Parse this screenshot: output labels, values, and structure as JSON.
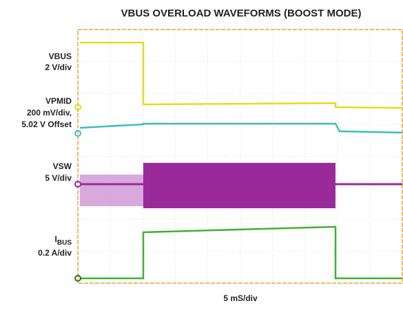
{
  "chart_data": {
    "type": "waveform",
    "title": "VBUS OVERLOAD WAVEFORMS (BOOST MODE)",
    "channels": [
      {
        "name": "VBUS",
        "scale": "2 V/div"
      },
      {
        "name": "VPMID",
        "scale": "200 mV/div,",
        "offset": "5.02 V Offset"
      },
      {
        "name": "VSW",
        "scale": "5 V/div"
      },
      {
        "name": "I",
        "name_sub": "BUS",
        "scale": "0.2 A/div"
      }
    ],
    "xlabel": "5 mS/div"
  }
}
